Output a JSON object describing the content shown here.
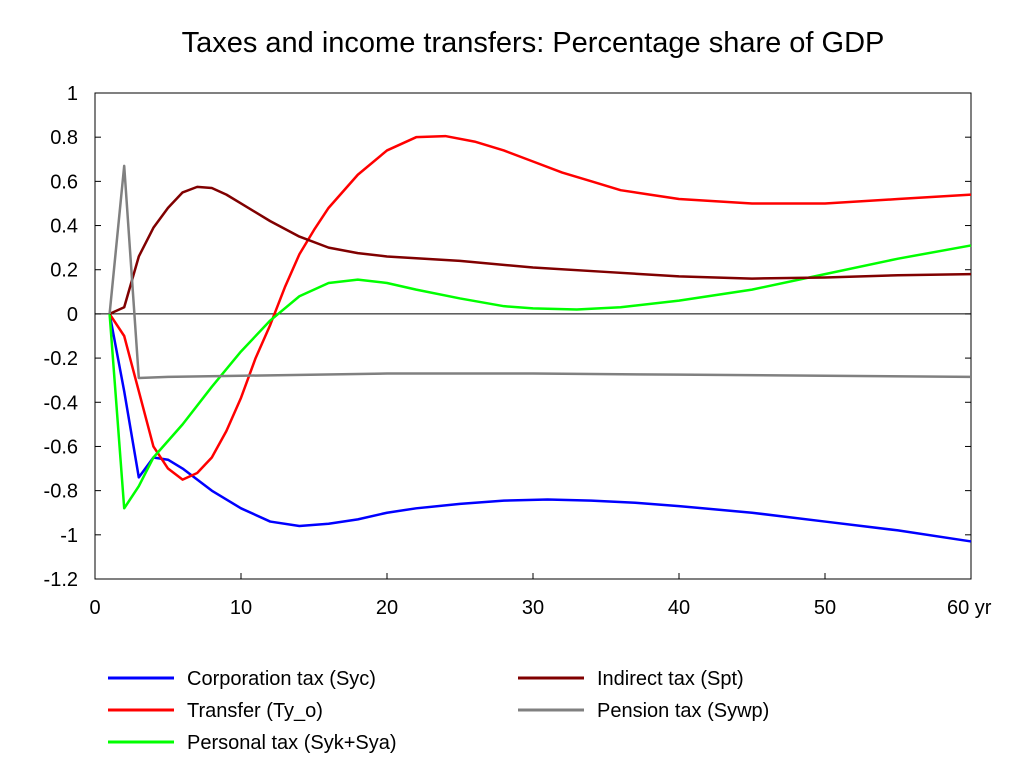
{
  "chart_data": {
    "type": "line",
    "title": "Taxes and income transfers: Percentage share of GDP",
    "x_unit_label": "yr",
    "xlim": [
      0,
      60
    ],
    "ylim": [
      -1.2,
      1
    ],
    "xticks": [
      0,
      10,
      20,
      30,
      40,
      50,
      60
    ],
    "xtick_labels": [
      "0",
      "10",
      "20",
      "30",
      "40",
      "50",
      "60 yr"
    ],
    "yticks": [
      1,
      0.8,
      0.6,
      0.4,
      0.2,
      0,
      -0.2,
      -0.4,
      -0.6,
      -0.8,
      -1,
      -1.2
    ],
    "ytick_labels": [
      "1",
      "0.8",
      "0.6",
      "0.4",
      "0.2",
      "0",
      "-0.2",
      "-0.4",
      "-0.6",
      "-0.8",
      "-1",
      "-1.2"
    ],
    "grid": false,
    "zero_line": true,
    "legend_position": "bottom",
    "series": [
      {
        "name": "Corporation tax (Syc)",
        "color": "#0000ff",
        "points": [
          [
            1,
            0
          ],
          [
            2,
            -0.35
          ],
          [
            3,
            -0.74
          ],
          [
            4,
            -0.65
          ],
          [
            5,
            -0.66
          ],
          [
            6,
            -0.7
          ],
          [
            8,
            -0.8
          ],
          [
            10,
            -0.88
          ],
          [
            12,
            -0.94
          ],
          [
            14,
            -0.96
          ],
          [
            16,
            -0.95
          ],
          [
            18,
            -0.93
          ],
          [
            20,
            -0.9
          ],
          [
            22,
            -0.88
          ],
          [
            25,
            -0.86
          ],
          [
            28,
            -0.845
          ],
          [
            31,
            -0.84
          ],
          [
            34,
            -0.845
          ],
          [
            37,
            -0.855
          ],
          [
            40,
            -0.87
          ],
          [
            45,
            -0.9
          ],
          [
            50,
            -0.94
          ],
          [
            55,
            -0.98
          ],
          [
            60,
            -1.03
          ]
        ]
      },
      {
        "name": "Transfer (Ty_o)",
        "color": "#ff0000",
        "points": [
          [
            1,
            0
          ],
          [
            2,
            -0.1
          ],
          [
            3,
            -0.35
          ],
          [
            4,
            -0.6
          ],
          [
            5,
            -0.7
          ],
          [
            6,
            -0.75
          ],
          [
            7,
            -0.72
          ],
          [
            8,
            -0.65
          ],
          [
            9,
            -0.53
          ],
          [
            10,
            -0.38
          ],
          [
            11,
            -0.2
          ],
          [
            12,
            -0.05
          ],
          [
            13,
            0.12
          ],
          [
            14,
            0.27
          ],
          [
            15,
            0.38
          ],
          [
            16,
            0.48
          ],
          [
            18,
            0.63
          ],
          [
            20,
            0.74
          ],
          [
            22,
            0.8
          ],
          [
            24,
            0.805
          ],
          [
            26,
            0.78
          ],
          [
            28,
            0.74
          ],
          [
            30,
            0.69
          ],
          [
            32,
            0.64
          ],
          [
            34,
            0.6
          ],
          [
            36,
            0.56
          ],
          [
            38,
            0.54
          ],
          [
            40,
            0.52
          ],
          [
            45,
            0.5
          ],
          [
            50,
            0.5
          ],
          [
            55,
            0.52
          ],
          [
            60,
            0.54
          ]
        ]
      },
      {
        "name": "Personal tax (Syk+Sya)",
        "color": "#00ff00",
        "points": [
          [
            1,
            0
          ],
          [
            2,
            -0.88
          ],
          [
            3,
            -0.78
          ],
          [
            4,
            -0.65
          ],
          [
            6,
            -0.5
          ],
          [
            8,
            -0.33
          ],
          [
            10,
            -0.17
          ],
          [
            12,
            -0.03
          ],
          [
            14,
            0.08
          ],
          [
            16,
            0.14
          ],
          [
            18,
            0.155
          ],
          [
            20,
            0.14
          ],
          [
            22,
            0.11
          ],
          [
            25,
            0.07
          ],
          [
            28,
            0.035
          ],
          [
            30,
            0.025
          ],
          [
            33,
            0.02
          ],
          [
            36,
            0.03
          ],
          [
            40,
            0.06
          ],
          [
            45,
            0.11
          ],
          [
            50,
            0.18
          ],
          [
            55,
            0.25
          ],
          [
            60,
            0.31
          ]
        ]
      },
      {
        "name": "Indirect tax (Spt)",
        "color": "#800000",
        "points": [
          [
            1,
            0
          ],
          [
            2,
            0.03
          ],
          [
            3,
            0.26
          ],
          [
            4,
            0.39
          ],
          [
            5,
            0.48
          ],
          [
            6,
            0.55
          ],
          [
            7,
            0.575
          ],
          [
            8,
            0.57
          ],
          [
            9,
            0.54
          ],
          [
            10,
            0.5
          ],
          [
            12,
            0.42
          ],
          [
            14,
            0.35
          ],
          [
            16,
            0.3
          ],
          [
            18,
            0.275
          ],
          [
            20,
            0.26
          ],
          [
            25,
            0.24
          ],
          [
            30,
            0.21
          ],
          [
            35,
            0.19
          ],
          [
            40,
            0.17
          ],
          [
            45,
            0.16
          ],
          [
            50,
            0.165
          ],
          [
            55,
            0.175
          ],
          [
            60,
            0.18
          ]
        ]
      },
      {
        "name": "Pension tax (Sywp)",
        "color": "#808080",
        "points": [
          [
            1,
            0
          ],
          [
            2,
            0.67
          ],
          [
            3,
            -0.29
          ],
          [
            5,
            -0.285
          ],
          [
            10,
            -0.28
          ],
          [
            20,
            -0.27
          ],
          [
            30,
            -0.27
          ],
          [
            40,
            -0.275
          ],
          [
            50,
            -0.28
          ],
          [
            60,
            -0.285
          ]
        ]
      }
    ]
  }
}
